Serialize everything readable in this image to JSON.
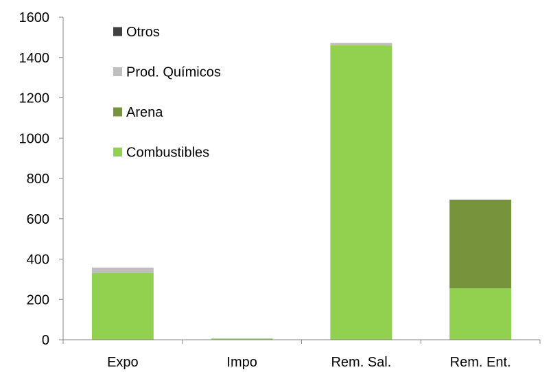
{
  "chart_data": {
    "type": "bar",
    "stacked": true,
    "categories": [
      "Expo",
      "Impo",
      "Rem. Sal.",
      "Rem. Ent."
    ],
    "series": [
      {
        "name": "Combustibles",
        "color": "#92d050",
        "values": [
          330,
          6,
          1460,
          255
        ]
      },
      {
        "name": "Arena",
        "color": "#77933c",
        "values": [
          0,
          0,
          0,
          440
        ]
      },
      {
        "name": "Prod. Químicos",
        "color": "#bfbfbf",
        "values": [
          28,
          0,
          12,
          0
        ]
      },
      {
        "name": "Otros",
        "color": "#404040",
        "values": [
          0,
          0,
          0,
          0
        ]
      }
    ],
    "legend_order": [
      "Otros",
      "Prod. Químicos",
      "Arena",
      "Combustibles"
    ],
    "ylim": [
      0,
      1600
    ],
    "yticks": [
      0,
      200,
      400,
      600,
      800,
      1000,
      1200,
      1400,
      1600
    ],
    "grid": false,
    "legend_position": "top-left"
  }
}
